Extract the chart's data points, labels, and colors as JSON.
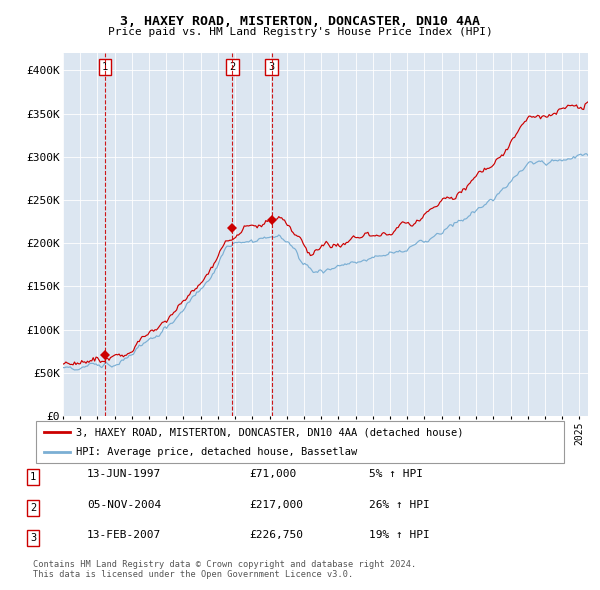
{
  "title": "3, HAXEY ROAD, MISTERTON, DONCASTER, DN10 4AA",
  "subtitle": "Price paid vs. HM Land Registry's House Price Index (HPI)",
  "sale_color": "#cc0000",
  "hpi_color": "#7bafd4",
  "bg_color": "#dce6f1",
  "ylim": [
    0,
    420000
  ],
  "yticks": [
    0,
    50000,
    100000,
    150000,
    200000,
    250000,
    300000,
    350000,
    400000
  ],
  "ytick_labels": [
    "£0",
    "£50K",
    "£100K",
    "£150K",
    "£200K",
    "£250K",
    "£300K",
    "£350K",
    "£400K"
  ],
  "sales": [
    {
      "num": 1,
      "date_dec": 1997.45,
      "price": 71000,
      "label": "13-JUN-1997",
      "pct": "5%",
      "dir": "↑"
    },
    {
      "num": 2,
      "date_dec": 2004.84,
      "price": 217000,
      "label": "05-NOV-2004",
      "pct": "26%",
      "dir": "↑"
    },
    {
      "num": 3,
      "date_dec": 2007.12,
      "price": 226750,
      "label": "13-FEB-2007",
      "pct": "19%",
      "dir": "↑"
    }
  ],
  "legend_entries": [
    {
      "color": "#cc0000",
      "label": "3, HAXEY ROAD, MISTERTON, DONCASTER, DN10 4AA (detached house)"
    },
    {
      "color": "#7bafd4",
      "label": "HPI: Average price, detached house, Bassetlaw"
    }
  ],
  "footer": "Contains HM Land Registry data © Crown copyright and database right 2024.\nThis data is licensed under the Open Government Licence v3.0.",
  "start_year": 1995,
  "end_year": 2025.5
}
